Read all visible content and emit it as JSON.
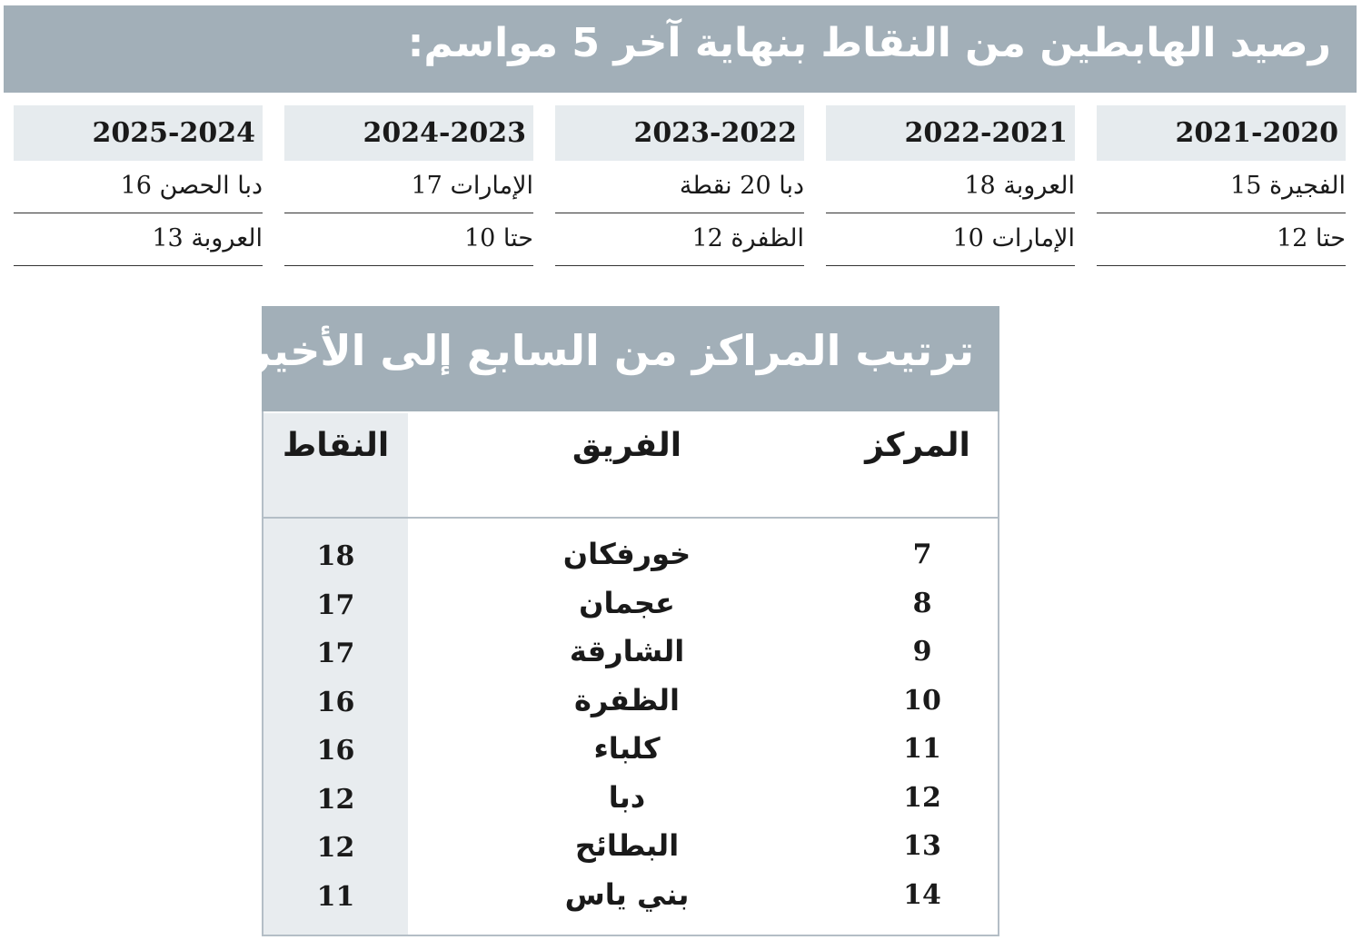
{
  "relegated": {
    "title": "رصيد الهابطين من النقاط بنهاية آخر 5 مواسم:",
    "seasons": [
      {
        "season": "2021-2020",
        "teams": [
          "الفجيرة 15",
          "حتا 12"
        ]
      },
      {
        "season": "2022-2021",
        "teams": [
          "العروبة 18",
          "الإمارات 10"
        ]
      },
      {
        "season": "2023-2022",
        "teams": [
          "دبا 20 نقطة",
          "الظفرة 12"
        ]
      },
      {
        "season": "2024-2023",
        "teams": [
          "الإمارات 17",
          "حتا 10"
        ]
      },
      {
        "season": "2025-2024",
        "teams": [
          "دبا الحصن 16",
          "العروبة 13"
        ]
      }
    ]
  },
  "standings": {
    "title": "ترتيب المراكز من السابع إلى الأخير",
    "headers": {
      "rank": "المركز",
      "team": "الفريق",
      "points": "النقاط"
    },
    "rows": [
      {
        "rank": "7",
        "team": "خورفكان",
        "points": "18"
      },
      {
        "rank": "8",
        "team": "عجمان",
        "points": "17"
      },
      {
        "rank": "9",
        "team": "الشارقة",
        "points": "17"
      },
      {
        "rank": "10",
        "team": "الظفرة",
        "points": "16"
      },
      {
        "rank": "11",
        "team": "كلباء",
        "points": "16"
      },
      {
        "rank": "12",
        "team": "دبا",
        "points": "12"
      },
      {
        "rank": "13",
        "team": "البطائح",
        "points": "12"
      },
      {
        "rank": "14",
        "team": "بني ياس",
        "points": "11"
      }
    ]
  },
  "colors": {
    "header_bg": "#a2afb8",
    "light_bg": "#e6ebee"
  }
}
